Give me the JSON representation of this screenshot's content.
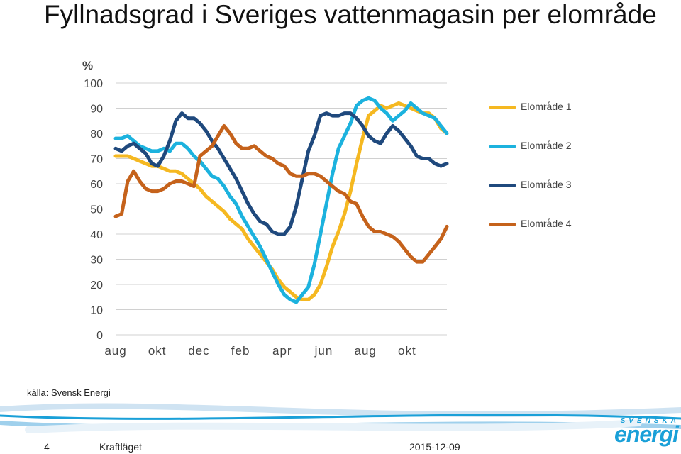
{
  "header": {
    "title": "Fyllnadsgrad i Sveriges vattenmagasin per elområde"
  },
  "chart_data": {
    "type": "line",
    "title": "Fyllnadsgrad i Sveriges vattenmagasin per elområde",
    "ylabel": "%",
    "xlabel": "",
    "ylim": [
      0,
      100
    ],
    "yticks": [
      0,
      10,
      20,
      30,
      40,
      50,
      60,
      70,
      80,
      90,
      100
    ],
    "x_tick_labels": [
      "aug",
      "okt",
      "dec",
      "feb",
      "apr",
      "jun",
      "aug",
      "okt"
    ],
    "x_range_weeks": [
      0,
      78
    ],
    "grid": true,
    "legend_position": "right",
    "series": [
      {
        "name": "Elområde 1",
        "color": "#f5b821",
        "values": [
          71,
          71,
          71,
          70,
          69,
          68,
          67,
          67,
          66,
          65,
          65,
          64,
          62,
          60,
          58,
          55,
          53,
          51,
          49,
          46,
          44,
          42,
          38,
          35,
          32,
          29,
          26,
          22,
          19,
          17,
          15,
          14,
          14,
          16,
          20,
          27,
          35,
          41,
          48,
          57,
          68,
          78,
          87,
          89,
          91,
          90,
          91,
          92,
          91,
          90,
          89,
          88,
          88,
          86,
          82,
          80
        ]
      },
      {
        "name": "Elområde 2",
        "color": "#1cb2de",
        "values": [
          78,
          78,
          79,
          77,
          75,
          74,
          73,
          73,
          74,
          73,
          76,
          76,
          74,
          71,
          69,
          66,
          63,
          62,
          59,
          55,
          52,
          47,
          43,
          39,
          35,
          30,
          25,
          20,
          16,
          14,
          13,
          16,
          19,
          28,
          40,
          52,
          64,
          74,
          79,
          84,
          91,
          93,
          94,
          93,
          90,
          88,
          85,
          87,
          89,
          92,
          90,
          88,
          87,
          86,
          83,
          80
        ]
      },
      {
        "name": "Elområde 3",
        "color": "#1f497d",
        "values": [
          74,
          73,
          75,
          76,
          74,
          72,
          68,
          67,
          71,
          77,
          85,
          88,
          86,
          86,
          84,
          81,
          77,
          74,
          70,
          66,
          62,
          57,
          52,
          48,
          45,
          44,
          41,
          40,
          40,
          43,
          51,
          62,
          73,
          79,
          87,
          88,
          87,
          87,
          88,
          88,
          86,
          83,
          79,
          77,
          76,
          80,
          83,
          81,
          78,
          75,
          71,
          70,
          70,
          68,
          67,
          68
        ]
      },
      {
        "name": "Elområde 4",
        "color": "#c5621b",
        "values": [
          47,
          48,
          61,
          65,
          61,
          58,
          57,
          57,
          58,
          60,
          61,
          61,
          60,
          59,
          71,
          73,
          75,
          79,
          83,
          80,
          76,
          74,
          74,
          75,
          73,
          71,
          70,
          68,
          67,
          64,
          63,
          63,
          64,
          64,
          63,
          61,
          59,
          57,
          56,
          53,
          52,
          47,
          43,
          41,
          41,
          40,
          39,
          37,
          34,
          31,
          29,
          29,
          32,
          35,
          38,
          43
        ]
      }
    ]
  },
  "legend": {
    "items": [
      {
        "label": "Elområde 1",
        "color": "#f5b821"
      },
      {
        "label": "Elområde 2",
        "color": "#1cb2de"
      },
      {
        "label": "Elområde 3",
        "color": "#1f497d"
      },
      {
        "label": "Elområde 4",
        "color": "#c5621b"
      }
    ]
  },
  "source": "källa: Svensk Energi",
  "footer": {
    "page_number": "4",
    "title": "Kraftläget",
    "date": "2015-12-09"
  },
  "logo": {
    "top_text": "SVENSKA",
    "main_text": "energi",
    "color": "#1aa0d8"
  }
}
